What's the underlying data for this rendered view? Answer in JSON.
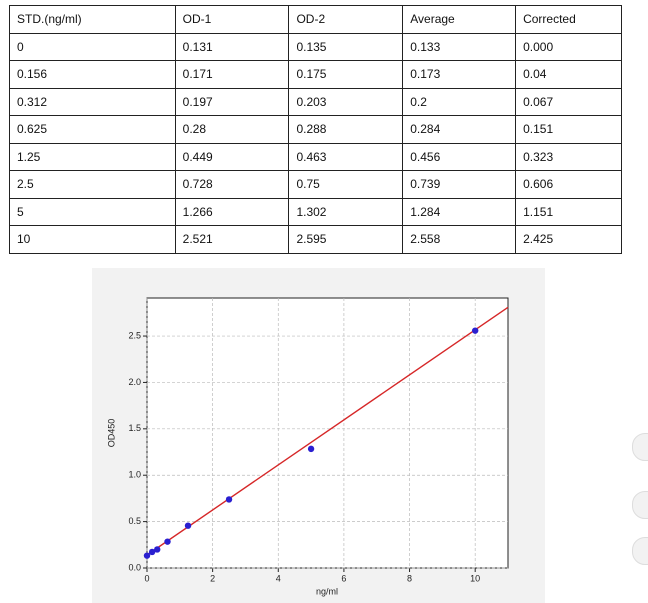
{
  "table": {
    "header": [
      "STD.(ng/ml)",
      "OD-1",
      "OD-2",
      "Average",
      "Corrected"
    ],
    "rows": [
      [
        "0",
        "0.131",
        "0.135",
        "0.133",
        "0.000"
      ],
      [
        "0.156",
        "0.171",
        "0.175",
        "0.173",
        "0.04"
      ],
      [
        "0.312",
        "0.197",
        "0.203",
        "0.2",
        "0.067"
      ],
      [
        "0.625",
        "0.28",
        "0.288",
        "0.284",
        "0.151"
      ],
      [
        "1.25",
        "0.449",
        "0.463",
        "0.456",
        "0.323"
      ],
      [
        "2.5",
        "0.728",
        "0.75",
        "0.739",
        "0.606"
      ],
      [
        "5",
        "1.266",
        "1.302",
        "1.284",
        "1.151"
      ],
      [
        "10",
        "2.521",
        "2.595",
        "2.558",
        "2.425"
      ]
    ]
  },
  "chart_data": {
    "type": "scatter",
    "xlabel": "ng/ml",
    "ylabel": "OD450",
    "points": {
      "color": "#2a1fd0",
      "x": [
        0,
        0.156,
        0.312,
        0.625,
        1.25,
        2.5,
        5,
        10
      ],
      "values": [
        0.133,
        0.173,
        0.2,
        0.284,
        0.456,
        0.739,
        1.284,
        2.558
      ]
    },
    "fit": {
      "color": "#d62728",
      "x": [
        0,
        11
      ],
      "values": [
        0.14,
        2.81
      ]
    },
    "xlim": [
      0,
      11
    ],
    "ylim": [
      0,
      2.91
    ],
    "xticks": [
      0,
      2,
      4,
      6,
      8,
      10
    ],
    "yticks": [
      {
        "value": 0,
        "label": "0.0"
      },
      0.5,
      {
        "value": 1,
        "label": "1.0"
      },
      1.5,
      {
        "value": 2,
        "label": "2.0"
      },
      2.5
    ],
    "grid": true
  }
}
